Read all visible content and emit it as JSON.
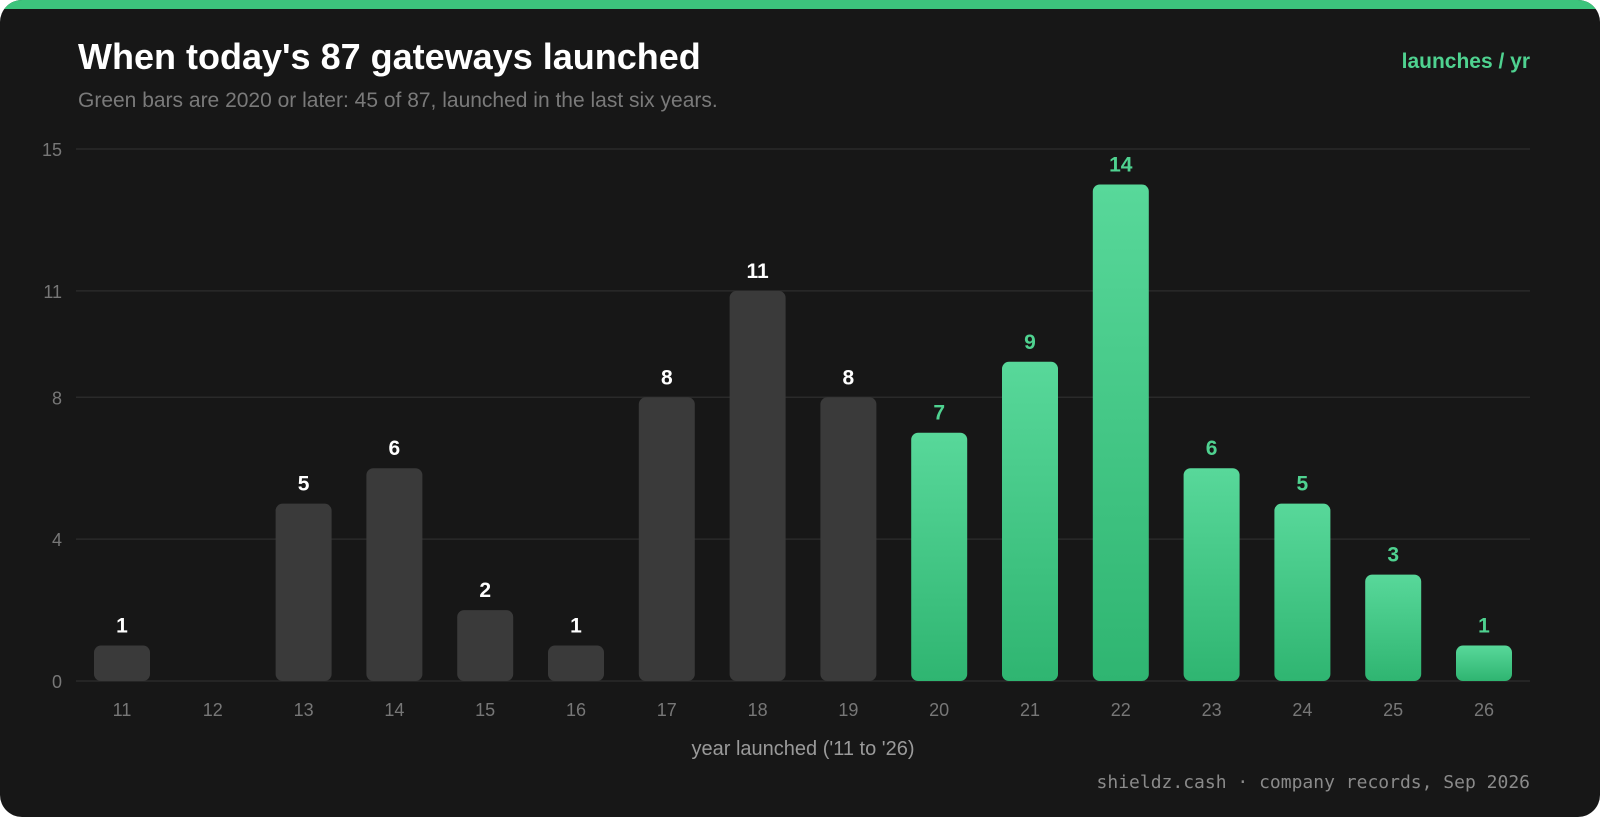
{
  "header": {
    "title": "When today's 87 gateways launched",
    "subtitle": "Green bars are 2020 or later: 45 of 87, launched in the last six years.",
    "unit_label": "launches / yr"
  },
  "footer": {
    "source": "shieldz.cash · company records, Sep 2026"
  },
  "colors": {
    "accent": "#3cc47c",
    "highlight_top": "#58d89a",
    "highlight_bottom": "#2fb571",
    "highlight_label": "#4fd290",
    "muted_bar": "#3a3a3a",
    "muted_label": "#ffffff",
    "grid": "#2a2a2a",
    "tick_text": "#777777",
    "axis_title": "#9a9a9a"
  },
  "chart_data": {
    "type": "bar",
    "title": "When today's 87 gateways launched",
    "subtitle": "Green bars are 2020 or later: 45 of 87, launched in the last six years.",
    "xlabel": "year launched ('11 to '26)",
    "ylabel": "",
    "unit_label": "launches / yr",
    "categories": [
      "11",
      "12",
      "13",
      "14",
      "15",
      "16",
      "17",
      "18",
      "19",
      "20",
      "21",
      "22",
      "23",
      "24",
      "25",
      "26"
    ],
    "values": [
      1,
      0,
      5,
      6,
      2,
      1,
      8,
      11,
      8,
      7,
      9,
      14,
      6,
      5,
      3,
      1
    ],
    "highlighted": [
      false,
      false,
      false,
      false,
      false,
      false,
      false,
      false,
      false,
      true,
      true,
      true,
      true,
      true,
      true,
      true
    ],
    "value_labels": [
      "1",
      "",
      "5",
      "6",
      "2",
      "1",
      "8",
      "11",
      "8",
      "7",
      "9",
      "14",
      "6",
      "5",
      "3",
      "1"
    ],
    "yticks": [
      0,
      4,
      8,
      11,
      15
    ],
    "ylim": [
      0,
      15
    ],
    "grid": true,
    "legend": "none"
  }
}
